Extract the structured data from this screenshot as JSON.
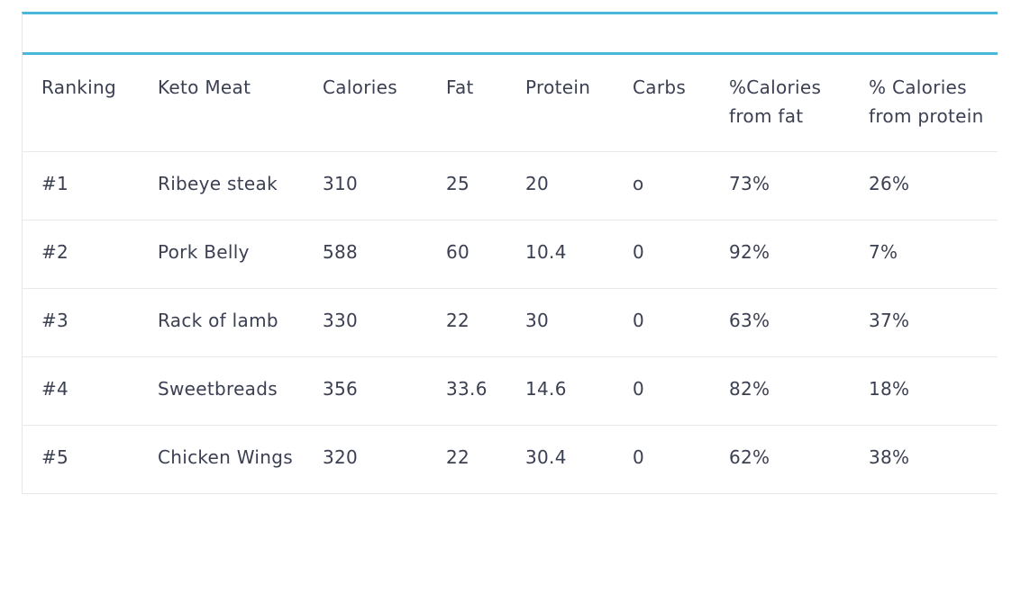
{
  "table": {
    "headers": [
      "Ranking",
      "Keto Meat",
      "Calories",
      "Fat",
      "Protein",
      "Carbs",
      "%Calories from fat",
      "% Calories from protein"
    ],
    "rows": [
      [
        "#1",
        "Ribeye steak",
        "310",
        "25",
        "20",
        "o",
        "73%",
        "26%"
      ],
      [
        "#2",
        "Pork Belly",
        "588",
        "60",
        "10.4",
        "0",
        "92%",
        "7%"
      ],
      [
        "#3",
        "Rack of lamb",
        "330",
        "22",
        "30",
        "0",
        "63%",
        "37%"
      ],
      [
        "#4",
        "Sweetbreads",
        "356",
        "33.6",
        "14.6",
        "0",
        "82%",
        "18%"
      ],
      [
        "#5",
        "Chicken Wings",
        "320",
        "22",
        "30.4",
        "0",
        "62%",
        "38%"
      ]
    ]
  },
  "colors": {
    "accent": "#4ab8d8",
    "text": "#3b3f52",
    "row_border": "#e9e9e9"
  }
}
